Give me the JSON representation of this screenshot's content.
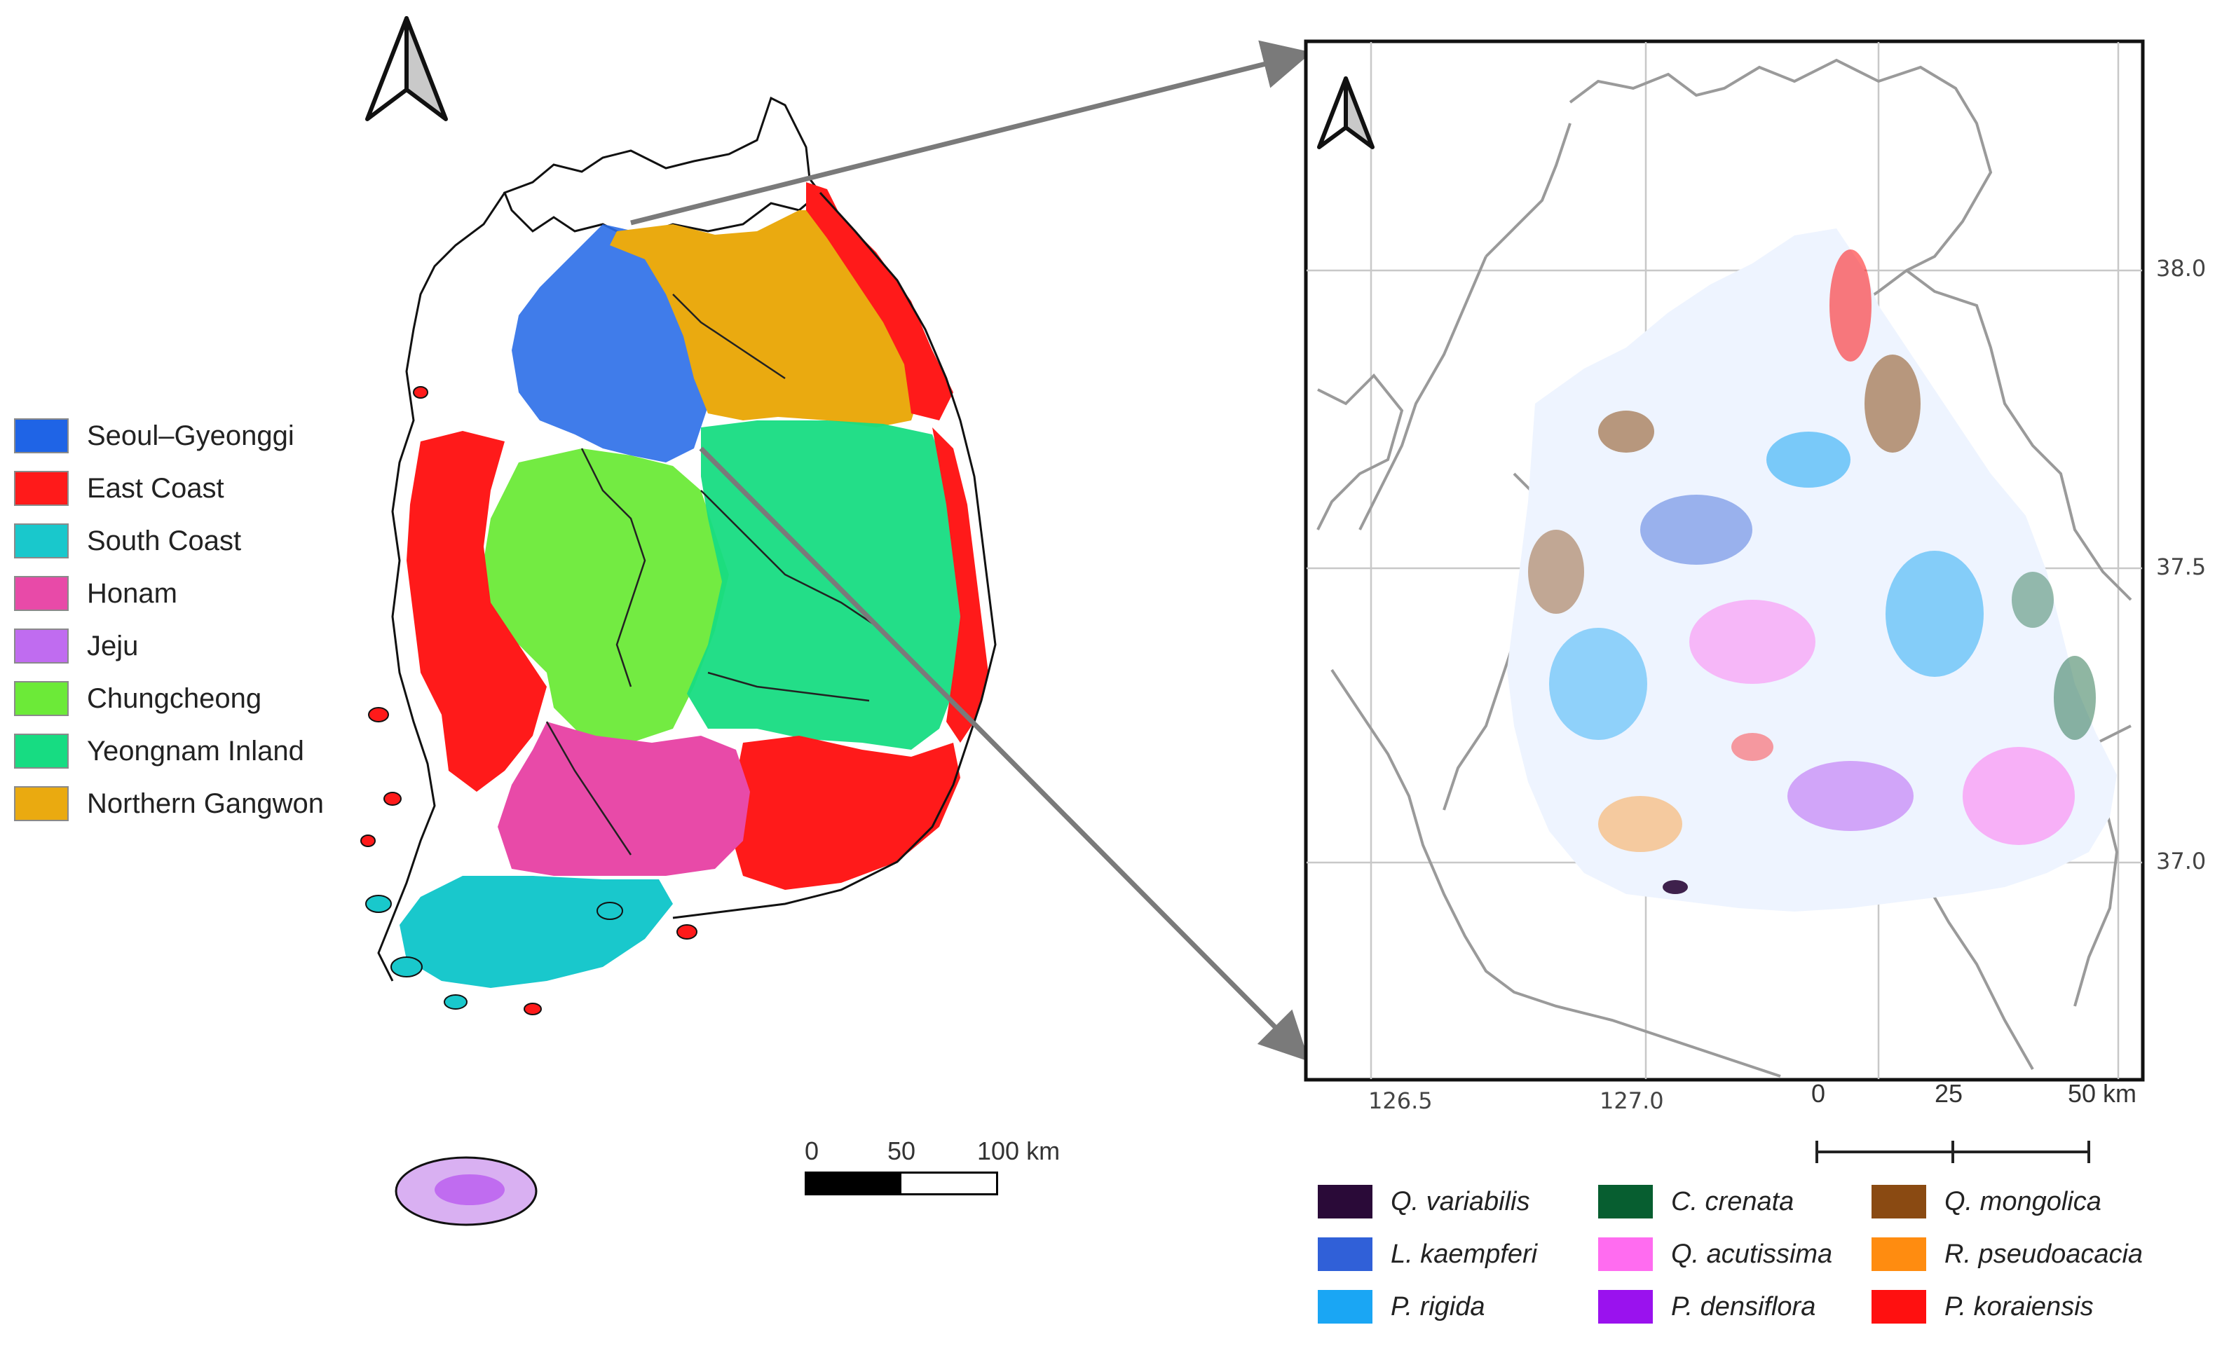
{
  "left_map": {
    "legend": [
      {
        "label": "Seoul–Gyeonggi",
        "color": "#1f64e6"
      },
      {
        "label": "East Coast",
        "color": "#ff1a1a"
      },
      {
        "label": "South Coast",
        "color": "#19c8cc"
      },
      {
        "label": "Honam",
        "color": "#e84aa8"
      },
      {
        "label": "Jeju",
        "color": "#c06cf0"
      },
      {
        "label": "Chungcheong",
        "color": "#6cea38"
      },
      {
        "label": "Yeongnam Inland",
        "color": "#17dc82"
      },
      {
        "label": "Northern Gangwon",
        "color": "#eaaa10"
      }
    ],
    "scale_bar": {
      "labels": [
        "0",
        "50",
        "100 km"
      ]
    },
    "north_arrow": "north-arrow-icon"
  },
  "right_map": {
    "lon_ticks": [
      "126.5",
      "127.0"
    ],
    "lat_ticks": [
      "38.0",
      "37.5",
      "37.0"
    ],
    "scale_bar": {
      "labels": [
        "0",
        "25",
        "50 km"
      ]
    },
    "north_arrow": "north-arrow-icon",
    "legend": [
      {
        "label": "Q. variabilis",
        "color": "#2a0a38"
      },
      {
        "label": "L.  kaempferi",
        "color": "#3060d8"
      },
      {
        "label": "P. rigida",
        "color": "#1aa6f4"
      },
      {
        "label": "C. crenata",
        "color": "#075e30"
      },
      {
        "label": "Q. acutissima",
        "color": "#ff6cf0"
      },
      {
        "label": "P. densiflora",
        "color": "#9a12ee"
      },
      {
        "label": "Q. mongolica",
        "color": "#8a4a12"
      },
      {
        "label": "R. pseudoacacia",
        "color": "#ff8c10"
      },
      {
        "label": "P. koraiensis",
        "color": "#ff1010"
      }
    ]
  },
  "connector_color": "#7a7a7a"
}
